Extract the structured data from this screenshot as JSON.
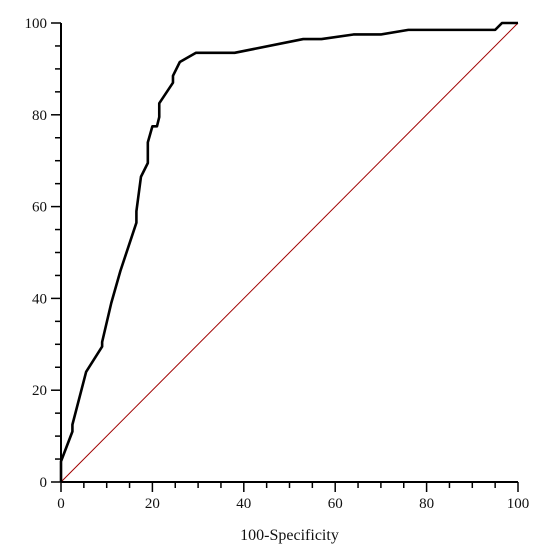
{
  "chart_data": {
    "type": "line",
    "title": "",
    "xlabel": "100-Specificity",
    "ylabel": "",
    "xlim": [
      0,
      100
    ],
    "ylim": [
      0,
      100
    ],
    "x_ticks": [
      "0",
      "20",
      "40",
      "60",
      "80",
      "100"
    ],
    "y_ticks": [
      "0",
      "20",
      "40",
      "60",
      "80",
      "100"
    ],
    "grid": false,
    "legend": "none",
    "series": [
      {
        "color": "#000000",
        "style": "solid",
        "points": [
          [
            0,
            0
          ],
          [
            0,
            4.5
          ],
          [
            2.5,
            11
          ],
          [
            2.5,
            12.5
          ],
          [
            5.5,
            24
          ],
          [
            9,
            29.5
          ],
          [
            9,
            30.5
          ],
          [
            11,
            39
          ],
          [
            13,
            46
          ],
          [
            16.5,
            56.5
          ],
          [
            16.5,
            59
          ],
          [
            17.5,
            66.5
          ],
          [
            19,
            69.5
          ],
          [
            19,
            74
          ],
          [
            20,
            77.5
          ],
          [
            21,
            77.5
          ],
          [
            21.5,
            79.5
          ],
          [
            21.5,
            82.5
          ],
          [
            24.5,
            87
          ],
          [
            24.5,
            88.5
          ],
          [
            26,
            91.5
          ],
          [
            29.5,
            93.5
          ],
          [
            38,
            93.5
          ],
          [
            53,
            96.5
          ],
          [
            57,
            96.5
          ],
          [
            64,
            97.5
          ],
          [
            70,
            97.5
          ],
          [
            76,
            98.5
          ],
          [
            95,
            98.5
          ],
          [
            96.5,
            100
          ],
          [
            100,
            100
          ]
        ]
      },
      {
        "color": "#a00000",
        "style": "solid",
        "points": [
          [
            0,
            0
          ],
          [
            100,
            100
          ]
        ]
      }
    ]
  }
}
